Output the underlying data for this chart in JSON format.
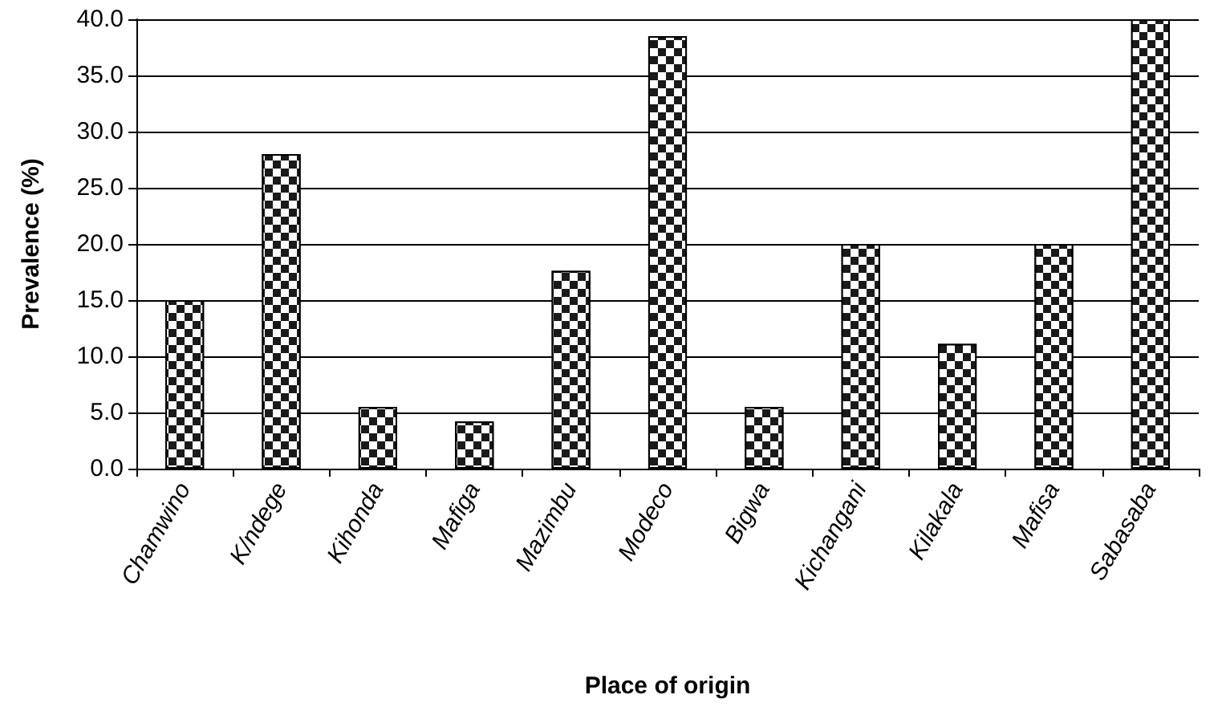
{
  "chart_data": {
    "type": "bar",
    "xlabel": "Place of origin",
    "ylabel": "Prevalence (%)",
    "categories": [
      "Chamwino",
      "K/ndege",
      "Kihonda",
      "Mafiga",
      "Mazimbu",
      "Modeco",
      "Bigwa",
      "Kichangani",
      "Kilakala",
      "Mafisa",
      "Sabasaba"
    ],
    "values": [
      15.0,
      28.0,
      5.5,
      4.2,
      17.6,
      38.5,
      5.5,
      20.0,
      11.1,
      20.0,
      40.0
    ],
    "color": "#1a1a1a",
    "ylim": [
      0,
      40
    ],
    "yticks": [
      {
        "value": 0,
        "label": "0.0"
      },
      {
        "value": 5,
        "label": "5.0"
      },
      {
        "value": 10,
        "label": "10.0"
      },
      {
        "value": 15,
        "label": "15.0"
      },
      {
        "value": 20,
        "label": "20.0"
      },
      {
        "value": 25,
        "label": "25.0"
      },
      {
        "value": 30,
        "label": "30.0"
      },
      {
        "value": 35,
        "label": "35.0"
      },
      {
        "value": 40,
        "label": "40.0"
      }
    ],
    "grid": "y"
  }
}
